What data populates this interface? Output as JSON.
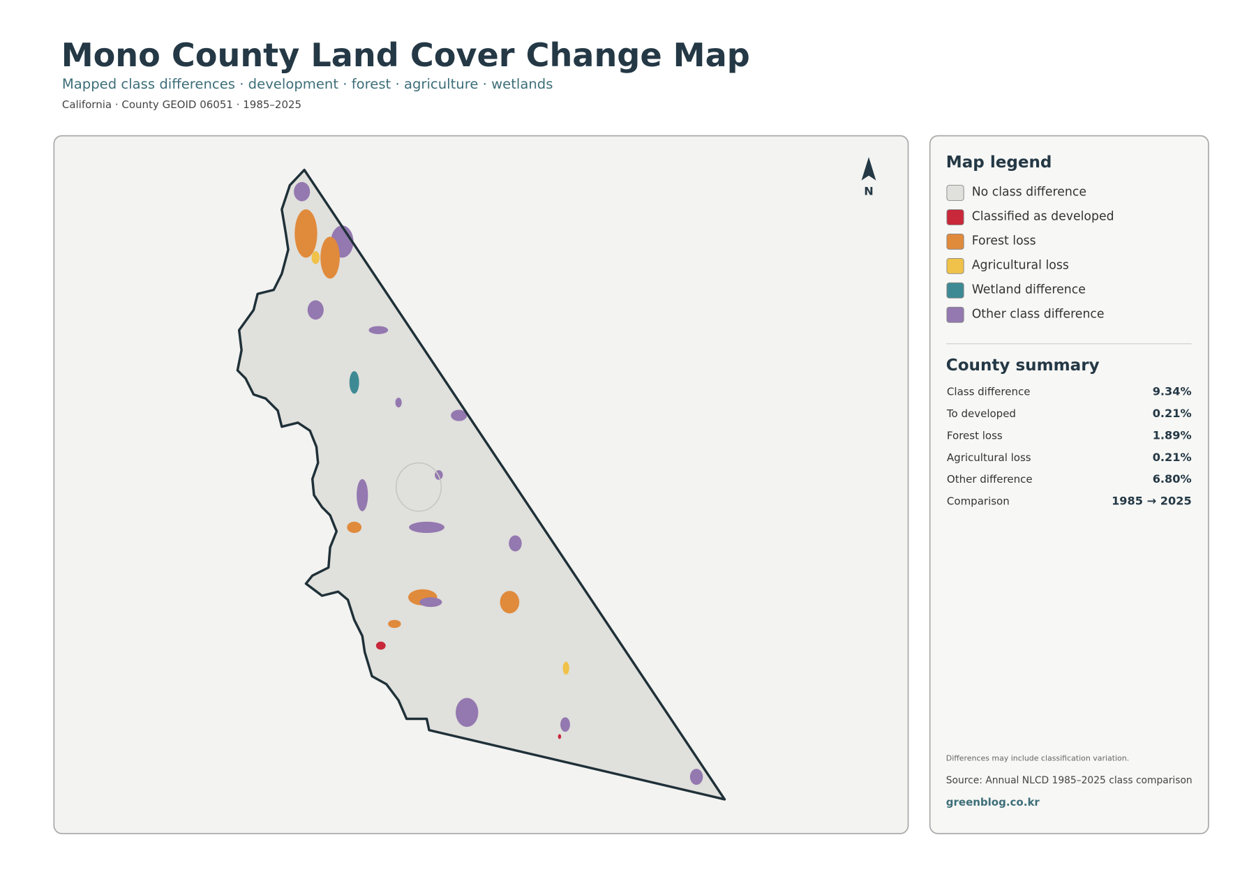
{
  "header": {
    "title": "Mono County Land Cover Change Map",
    "subtitle": "Mapped class differences · development · forest · agriculture · wetlands",
    "meta": "California · County GEOID 06051 · 1985–2025"
  },
  "map": {
    "north_label": "N"
  },
  "legend": {
    "title": "Map legend",
    "items": [
      {
        "label": "No class difference",
        "color": "#e0e0dc"
      },
      {
        "label": "Classified as developed",
        "color": "#c8283a"
      },
      {
        "label": "Forest loss",
        "color": "#e08a3c"
      },
      {
        "label": "Agricultural loss",
        "color": "#f0c24a"
      },
      {
        "label": "Wetland difference",
        "color": "#3e8a94"
      },
      {
        "label": "Other class difference",
        "color": "#9478b0"
      }
    ]
  },
  "summary": {
    "title": "County summary",
    "rows": [
      {
        "label": "Class difference",
        "value": "9.34%"
      },
      {
        "label": "To developed",
        "value": "0.21%"
      },
      {
        "label": "Forest loss",
        "value": "1.89%"
      },
      {
        "label": "Agricultural loss",
        "value": "0.21%"
      },
      {
        "label": "Other difference",
        "value": "6.80%"
      },
      {
        "label": "Comparison",
        "value": "1985 → 2025"
      }
    ]
  },
  "footer": {
    "note": "Differences may include classification variation.",
    "source": "Source: Annual NLCD 1985–2025 class comparison",
    "site": "greenblog.co.kr"
  }
}
